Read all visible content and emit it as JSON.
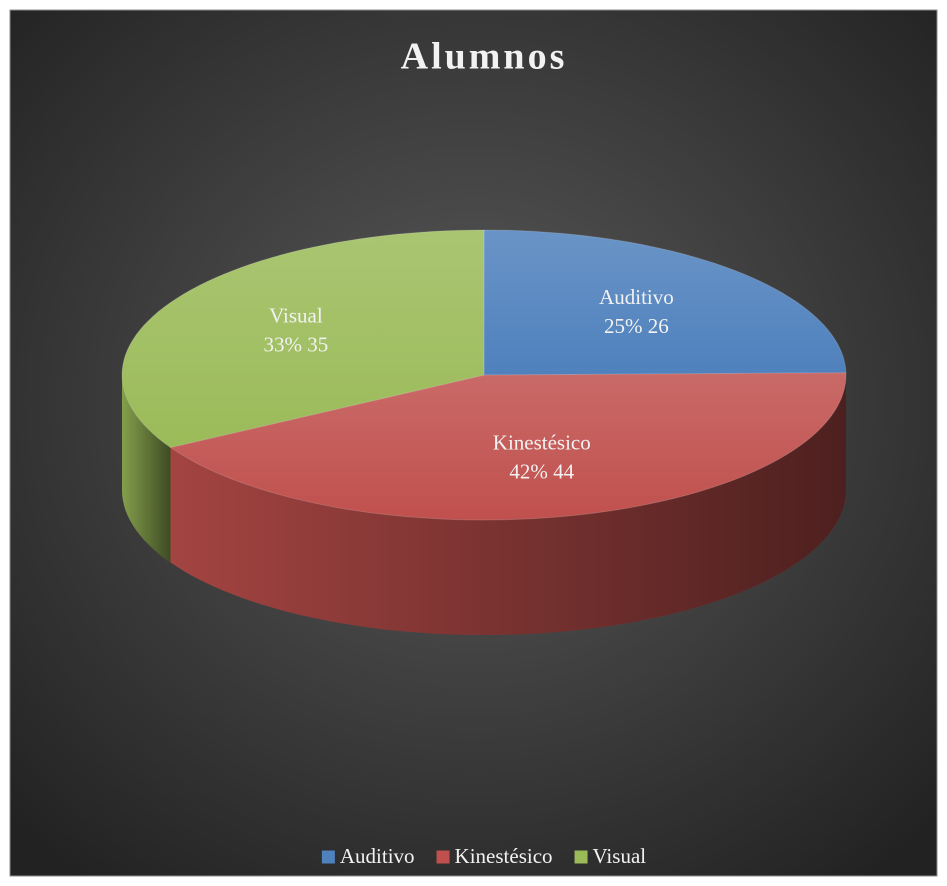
{
  "chart_data": {
    "type": "pie",
    "title": "Alumnos",
    "categories": [
      "Auditivo",
      "Kinestésico",
      "Visual"
    ],
    "values": [
      26,
      44,
      35
    ],
    "value_labels": [
      "25% 26",
      "42% 44",
      "33% 35"
    ],
    "colors": [
      "#4f81bd",
      "#c0504d",
      "#9bbb59"
    ],
    "legend": "bottom"
  }
}
